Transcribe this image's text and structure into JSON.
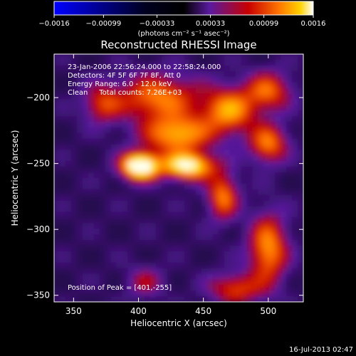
{
  "chart_data": {
    "type": "heatmap",
    "title": "Reconstructed RHESSI Image",
    "xlabel": "Heliocentric X (arcsec)",
    "ylabel": "Heliocentric Y (arcsec)",
    "xlim": [
      335,
      527
    ],
    "ylim": [
      -355,
      -167
    ],
    "x_ticks": [
      350,
      400,
      450,
      500
    ],
    "y_ticks": [
      -200,
      -250,
      -300,
      -350
    ],
    "x_tick_labels": [
      "350",
      "400",
      "450",
      "500"
    ],
    "y_tick_labels": [
      "−200",
      "−250",
      "−300",
      "−350"
    ],
    "colorbar": {
      "min": -0.0016,
      "max": 0.0016,
      "ticks": [
        -0.0016,
        -0.00099,
        -0.00033,
        0.00033,
        0.00099,
        0.0016
      ],
      "tick_labels": [
        "−0.0016",
        "−0.00099",
        "−0.00033",
        "0.00033",
        "0.00099",
        "0.0016"
      ],
      "unit_label": "(photons cm⁻² s⁻¹ asec⁻²)"
    },
    "colormap": [
      "#0000ff",
      "#000000",
      "#5a1aa0",
      "#c80000",
      "#ff7800",
      "#ffd200",
      "#ffffff"
    ],
    "peak": [
      401,
      -255
    ],
    "sources": [
      {
        "x": 401,
        "y": -252,
        "sx": 10,
        "sy": 7,
        "amp": 1.0
      },
      {
        "x": 438,
        "y": -252,
        "sx": 14,
        "sy": 7,
        "amp": 0.8
      },
      {
        "x": 430,
        "y": -228,
        "sx": 18,
        "sy": 10,
        "amp": 0.6
      },
      {
        "x": 415,
        "y": -200,
        "sx": 22,
        "sy": 12,
        "amp": 0.5
      },
      {
        "x": 470,
        "y": -210,
        "sx": 14,
        "sy": 12,
        "amp": 0.55
      },
      {
        "x": 500,
        "y": -235,
        "sx": 10,
        "sy": 10,
        "amp": 0.5
      },
      {
        "x": 500,
        "y": -195,
        "sx": 12,
        "sy": 10,
        "amp": 0.45
      },
      {
        "x": 372,
        "y": -205,
        "sx": 10,
        "sy": 10,
        "amp": 0.35
      },
      {
        "x": 465,
        "y": -275,
        "sx": 8,
        "sy": 12,
        "amp": 0.5
      },
      {
        "x": 500,
        "y": -315,
        "sx": 10,
        "sy": 18,
        "amp": 0.55
      },
      {
        "x": 475,
        "y": -345,
        "sx": 14,
        "sy": 8,
        "amp": 0.4
      },
      {
        "x": 405,
        "y": -340,
        "sx": 10,
        "sy": 8,
        "amp": 0.25
      }
    ],
    "annotations": {
      "time": "23-Jan-2006 22:56:24.000 to 22:58:24.000",
      "detectors": "Detectors: 4F 5F 6F 7F 8F, Att 0",
      "energy": "Energy Range: 6.0 - 12.0 keV",
      "clean": "Clean     Total counts: 7.26E+03",
      "peak": "Position of Peak = [401,-255]"
    },
    "timestamp": "16-Jul-2013 02:47"
  }
}
